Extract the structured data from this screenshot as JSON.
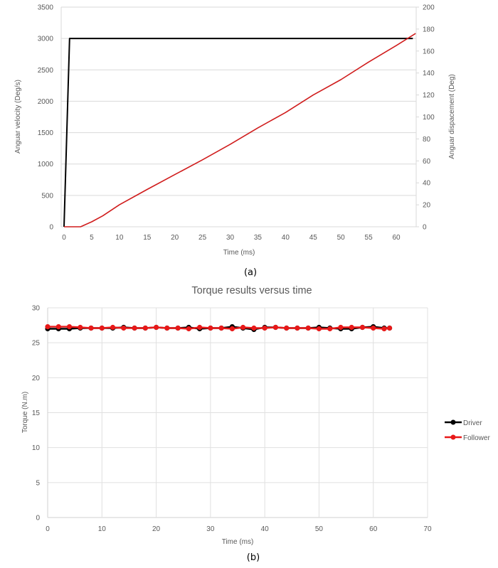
{
  "chart_data": [
    {
      "id": "a",
      "type": "line",
      "title": "",
      "caption": "(a)",
      "xlabel": "Time (ms)",
      "ylabel": "Anguar velocity (Deg/s)",
      "y2label": "Anguar dispacement (Deg)",
      "xlim": [
        0,
        63.5
      ],
      "ylim": [
        0,
        3500
      ],
      "y2lim": [
        0,
        200
      ],
      "x_ticks": [
        0,
        5,
        10,
        15,
        20,
        25,
        30,
        35,
        40,
        45,
        50,
        55,
        60
      ],
      "y_ticks": [
        0,
        500,
        1000,
        1500,
        2000,
        2500,
        3000,
        3500
      ],
      "y2_ticks": [
        0,
        20,
        40,
        60,
        80,
        100,
        120,
        140,
        160,
        180,
        200
      ],
      "grid": "horizontal",
      "legend": null,
      "series": [
        {
          "name": "Angular velocity",
          "axis": "left",
          "color": "#000000",
          "x": [
            0,
            1,
            63
          ],
          "y": [
            0,
            3000,
            3000
          ]
        },
        {
          "name": "Angular displacement",
          "axis": "right",
          "color": "#d01c1c",
          "x": [
            0,
            3,
            5,
            7,
            10,
            15,
            20,
            25,
            30,
            35,
            40,
            45,
            50,
            55,
            60,
            63.5
          ],
          "y": [
            0,
            0,
            4.5,
            10,
            20,
            34,
            47.5,
            61,
            75,
            90,
            104,
            120,
            134,
            150,
            165,
            176
          ]
        }
      ]
    },
    {
      "id": "b",
      "type": "line",
      "title": "Torque results versus time",
      "caption": "(b)",
      "xlabel": "Time (ms)",
      "ylabel": "Torque (N.m)",
      "xlim": [
        0,
        70
      ],
      "ylim": [
        0,
        30
      ],
      "x_ticks": [
        0,
        10,
        20,
        30,
        40,
        50,
        60,
        70
      ],
      "y_ticks": [
        0,
        5,
        10,
        15,
        20,
        25,
        30
      ],
      "grid": "both",
      "legend": {
        "position": "right",
        "entries": [
          "Driver",
          "Follower"
        ]
      },
      "series": [
        {
          "name": "Driver",
          "color": "#000000",
          "x": [
            0,
            2,
            4,
            6,
            8,
            10,
            12,
            14,
            16,
            18,
            20,
            22,
            24,
            26,
            28,
            30,
            32,
            34,
            36,
            38,
            40,
            42,
            44,
            46,
            48,
            50,
            52,
            54,
            56,
            58,
            60,
            62,
            63
          ],
          "y": [
            27.0,
            27.0,
            27.0,
            27.1,
            27.1,
            27.1,
            27.1,
            27.2,
            27.1,
            27.1,
            27.2,
            27.1,
            27.1,
            27.2,
            27.0,
            27.1,
            27.1,
            27.3,
            27.1,
            26.9,
            27.2,
            27.2,
            27.1,
            27.1,
            27.1,
            27.2,
            27.1,
            27.0,
            27.0,
            27.2,
            27.3,
            27.1,
            27.1
          ]
        },
        {
          "name": "Follower",
          "color": "#e81919",
          "x": [
            0,
            2,
            4,
            6,
            8,
            10,
            12,
            14,
            16,
            18,
            20,
            22,
            24,
            26,
            28,
            30,
            32,
            34,
            36,
            38,
            40,
            42,
            44,
            46,
            48,
            50,
            52,
            54,
            56,
            58,
            60,
            62,
            63
          ],
          "y": [
            27.3,
            27.3,
            27.3,
            27.2,
            27.1,
            27.1,
            27.2,
            27.1,
            27.1,
            27.1,
            27.2,
            27.1,
            27.1,
            27.0,
            27.2,
            27.1,
            27.1,
            27.0,
            27.2,
            27.1,
            27.1,
            27.2,
            27.1,
            27.1,
            27.1,
            27.0,
            27.0,
            27.2,
            27.2,
            27.2,
            27.1,
            27.0,
            27.1
          ]
        }
      ]
    }
  ],
  "figure": {
    "caption_a": "(a)",
    "caption_b": "(b)",
    "title_b": "Torque results versus time"
  }
}
